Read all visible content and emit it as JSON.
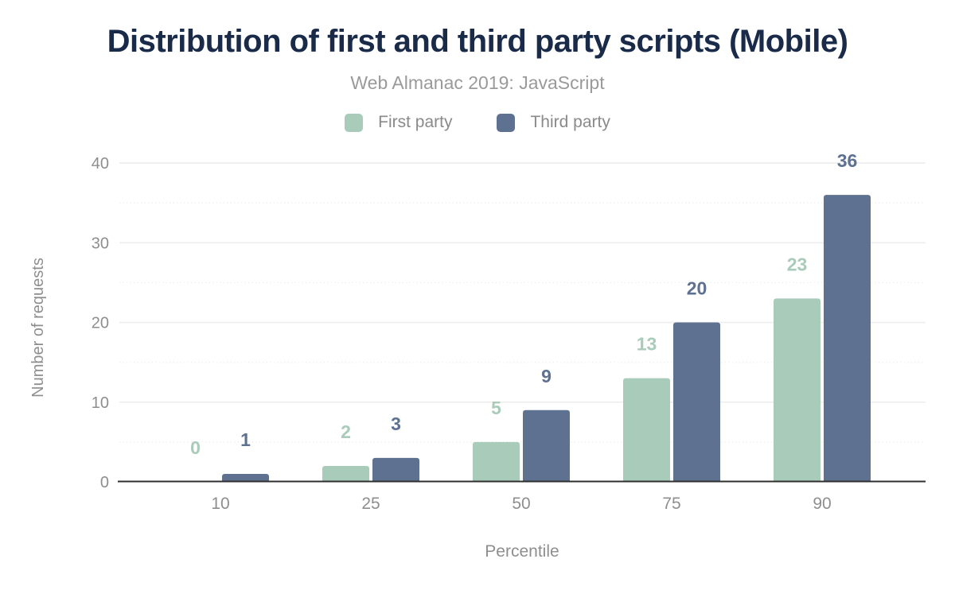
{
  "header": {
    "title": "Distribution of first and third party scripts (Mobile)",
    "subtitle": "Web Almanac 2019: JavaScript"
  },
  "chart_data": {
    "type": "bar",
    "title": "Distribution of first and third party scripts (Mobile)",
    "subtitle": "Web Almanac 2019: JavaScript",
    "categories": [
      "10",
      "25",
      "50",
      "75",
      "90"
    ],
    "series": [
      {
        "name": "First party",
        "color": "#a9cbb9",
        "values": [
          0,
          2,
          5,
          13,
          23
        ]
      },
      {
        "name": "Third party",
        "color": "#5e7191",
        "values": [
          1,
          3,
          9,
          20,
          36
        ]
      }
    ],
    "xlabel": "Percentile",
    "ylabel": "Number of requests",
    "ylim": [
      0,
      40
    ],
    "yticks": [
      0,
      10,
      20,
      30,
      40
    ],
    "minor_yticks": [
      5,
      15,
      25,
      35
    ],
    "grid": true,
    "legend_position": "top",
    "data_labels": true
  },
  "colors": {
    "title": "#1a2b49",
    "subtitle": "#9a9a9a",
    "legend_text": "#8a8a8a",
    "axis_text": "#8e8e8e",
    "first_party": "#a9cbb9",
    "third_party": "#5e7191"
  }
}
